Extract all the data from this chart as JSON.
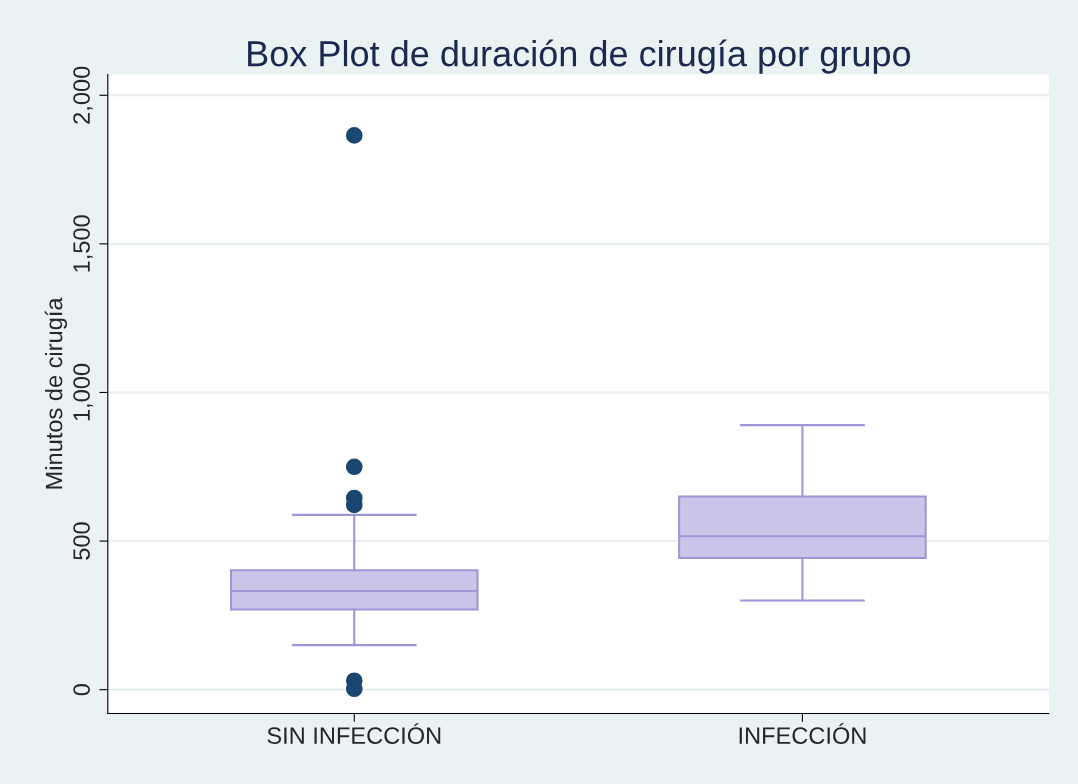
{
  "chart_data": {
    "type": "box",
    "title": "Box Plot de duración de cirugía por grupo",
    "ylabel": "Minutos de cirugía",
    "categories": [
      "SIN INFECCIÓN",
      "INFECCIÓN"
    ],
    "boxes": [
      {
        "low": 150,
        "q1": 270,
        "median": 332,
        "q3": 402,
        "high": 588,
        "outliers": [
          1865,
          750,
          645,
          622,
          30,
          3
        ]
      },
      {
        "low": 300,
        "q1": 443,
        "median": 516,
        "q3": 650,
        "high": 890
      }
    ],
    "color": "#cac6ea",
    "ylim": [
      -80,
      2070
    ],
    "yticks": [
      {
        "value": 0,
        "label": "0"
      },
      {
        "value": 500,
        "label": "500"
      },
      {
        "value": 1000,
        "label": "1,000"
      },
      {
        "value": 1500,
        "label": "1,500"
      },
      {
        "value": 2000,
        "label": "2,000"
      }
    ],
    "grid": "y",
    "legend": false
  }
}
